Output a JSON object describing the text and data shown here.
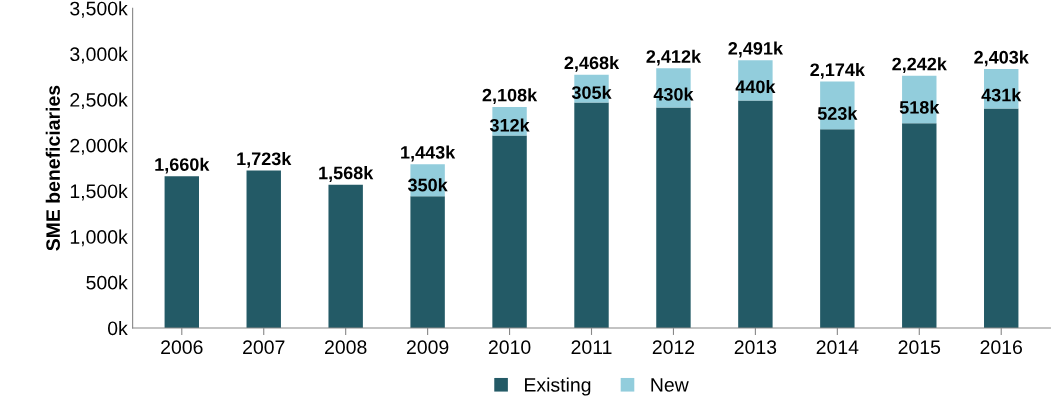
{
  "chart_data": {
    "type": "bar",
    "stacked": true,
    "ylabel": "SME beneficiaries",
    "categories": [
      "2006",
      "2007",
      "2008",
      "2009",
      "2010",
      "2011",
      "2012",
      "2013",
      "2014",
      "2015",
      "2016"
    ],
    "series": [
      {
        "name": "Existing",
        "color": "#235a66",
        "values": [
          1660,
          1723,
          1568,
          1443,
          2108,
          2468,
          2412,
          2491,
          2174,
          2242,
          2403
        ],
        "value_labels": [
          "1,660k",
          "1,723k",
          "1,568k",
          "1,443k",
          "2,108k",
          "2,468k",
          "2,412k",
          "2,491k",
          "2,174k",
          "2,242k",
          "2,403k"
        ]
      },
      {
        "name": "New",
        "color": "#92cddc",
        "values": [
          null,
          null,
          null,
          350,
          312,
          305,
          430,
          440,
          523,
          518,
          431
        ],
        "value_labels": [
          null,
          null,
          null,
          "350k",
          "312k",
          "305k",
          "430k",
          "440k",
          "523k",
          "518k",
          "431k"
        ]
      }
    ],
    "ylim": [
      0,
      3500
    ],
    "yticks": [
      {
        "value": 0,
        "label": "0k"
      },
      {
        "value": 500,
        "label": "500k"
      },
      {
        "value": 1000,
        "label": "1,000k"
      },
      {
        "value": 1500,
        "label": "1,500k"
      },
      {
        "value": 2000,
        "label": "2,000k"
      },
      {
        "value": 2500,
        "label": "2,500k"
      },
      {
        "value": 3000,
        "label": "3,000k"
      },
      {
        "value": 3500,
        "label": "3,500k"
      }
    ],
    "grid": false,
    "legend": "bottom"
  }
}
